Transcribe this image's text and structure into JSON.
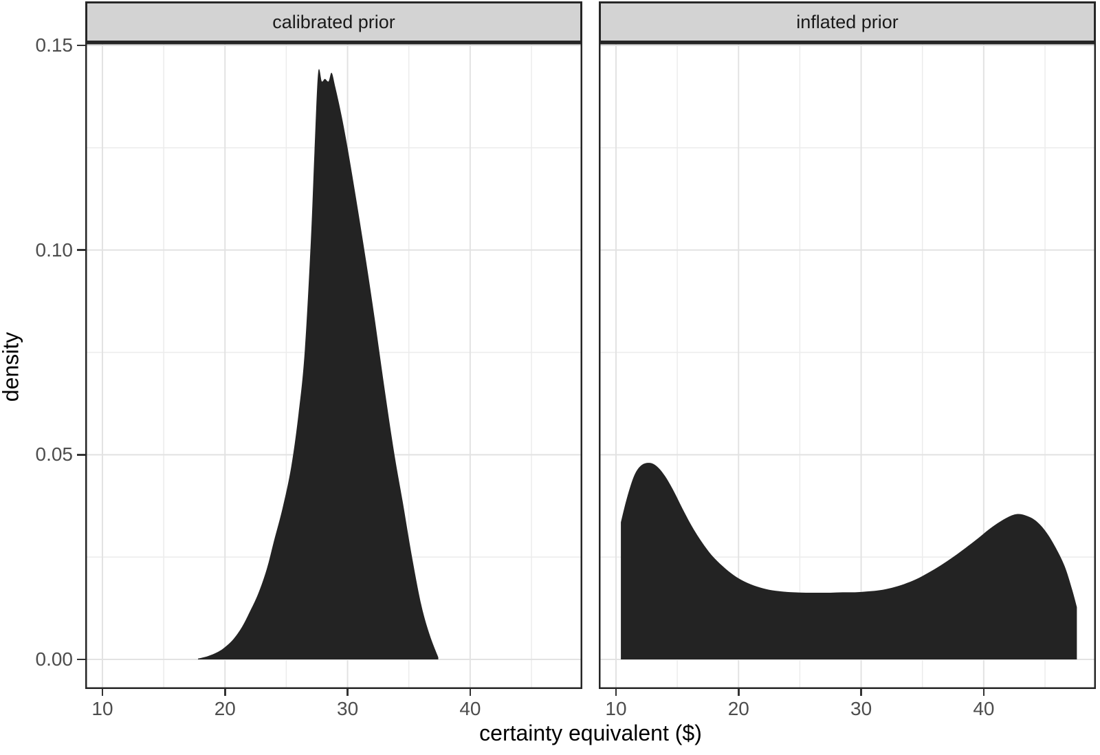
{
  "chart_data": {
    "type": "area",
    "title": "",
    "xlabel": "certainty equivalent ($)",
    "ylabel": "density",
    "facet_labels": [
      "calibrated prior",
      "inflated prior"
    ],
    "x_major_ticks": [
      10,
      20,
      30,
      40
    ],
    "x_tick_labels": [
      "10",
      "20",
      "30",
      "40"
    ],
    "x_minor_gridlines": [
      15,
      25,
      35,
      45
    ],
    "y_major_ticks": [
      0.0,
      0.05,
      0.1,
      0.15
    ],
    "y_tick_labels": [
      "0.00",
      "0.05",
      "0.10",
      "0.15"
    ],
    "y_minor_gridlines": [
      0.025,
      0.075,
      0.125
    ],
    "xlim": [
      8.6,
      49.15
    ],
    "ylim": [
      0,
      0.15
    ],
    "grid": true,
    "legend": "none",
    "series": [
      {
        "name": "calibrated prior",
        "x": [
          17.8,
          18.6,
          19.4,
          20.0,
          20.7,
          21.4,
          22.0,
          22.7,
          23.4,
          24.0,
          24.7,
          25.4,
          26.0,
          26.5,
          27.0,
          27.3,
          27.6,
          27.9,
          28.15,
          28.45,
          28.7,
          29.0,
          29.5,
          30.0,
          30.7,
          31.5,
          32.2,
          33.0,
          33.8,
          34.5,
          35.2,
          36.0,
          36.7,
          37.4
        ],
        "density": [
          0.0002,
          0.0008,
          0.0018,
          0.003,
          0.005,
          0.008,
          0.0115,
          0.016,
          0.022,
          0.029,
          0.037,
          0.047,
          0.06,
          0.075,
          0.102,
          0.124,
          0.1433,
          0.1412,
          0.1418,
          0.1412,
          0.1433,
          0.1398,
          0.133,
          0.125,
          0.1125,
          0.0975,
          0.0835,
          0.0665,
          0.0505,
          0.0385,
          0.026,
          0.0135,
          0.006,
          0.0005
        ],
        "left_truncated": false,
        "right_truncated": false
      },
      {
        "name": "inflated prior",
        "x": [
          10.4,
          10.9,
          11.5,
          12.1,
          12.8,
          13.4,
          14.0,
          14.7,
          15.4,
          16.2,
          17.0,
          17.8,
          18.7,
          19.6,
          20.5,
          21.5,
          22.5,
          23.5,
          24.5,
          25.5,
          26.5,
          27.5,
          28.5,
          29.5,
          30.5,
          31.5,
          32.5,
          33.5,
          34.5,
          35.5,
          36.5,
          37.5,
          38.5,
          39.5,
          40.4,
          41.2,
          42.0,
          42.7,
          43.4,
          44.2,
          45.0,
          45.8,
          46.6,
          47.2,
          47.6
        ],
        "density": [
          0.0335,
          0.0395,
          0.045,
          0.0475,
          0.048,
          0.047,
          0.0448,
          0.0412,
          0.037,
          0.0325,
          0.0287,
          0.0255,
          0.0228,
          0.0206,
          0.019,
          0.0178,
          0.017,
          0.0166,
          0.0164,
          0.0163,
          0.0163,
          0.0163,
          0.0164,
          0.0164,
          0.0166,
          0.0169,
          0.0175,
          0.0184,
          0.0196,
          0.0212,
          0.023,
          0.025,
          0.0272,
          0.0295,
          0.0317,
          0.0334,
          0.0348,
          0.0355,
          0.0352,
          0.034,
          0.0315,
          0.0277,
          0.0228,
          0.0172,
          0.0128
        ],
        "left_truncated": true,
        "right_truncated": true
      }
    ]
  },
  "style": {
    "fill_color": "#232323",
    "strip_bg": "#d3d3d3",
    "strip_text": "#1a1a1a",
    "panel_border": "#262626",
    "grid_major": "#e2e2e2",
    "grid_minor": "#ececec",
    "axis_color": "#333333",
    "tick_text": "#4d4d4d"
  }
}
